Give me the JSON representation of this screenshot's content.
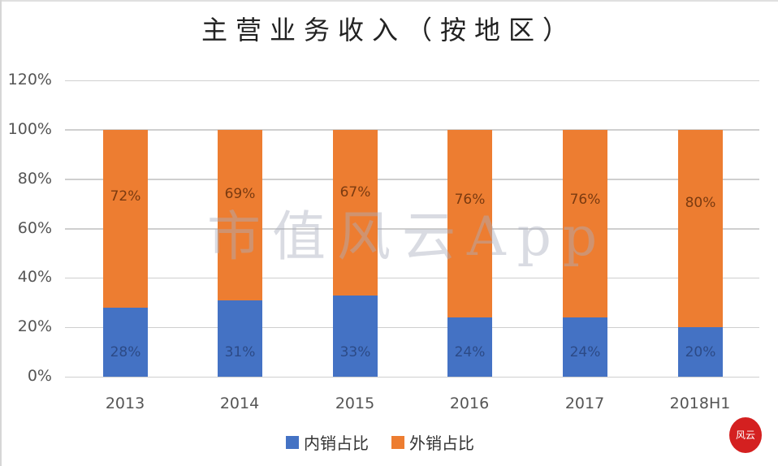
{
  "chart_data": {
    "type": "bar",
    "stacked": true,
    "title": "主营业务收入（按地区）",
    "xlabel": "",
    "ylabel": "",
    "categories": [
      "2013",
      "2014",
      "2015",
      "2016",
      "2017",
      "2018H1"
    ],
    "series": [
      {
        "name": "内销占比",
        "color": "#4472c4",
        "values": [
          28,
          31,
          33,
          24,
          24,
          20
        ],
        "labels": [
          "28%",
          "31%",
          "33%",
          "24%",
          "24%",
          "20%"
        ]
      },
      {
        "name": "外销占比",
        "color": "#ed7d31",
        "values": [
          72,
          69,
          67,
          76,
          76,
          80
        ],
        "labels": [
          "72%",
          "69%",
          "67%",
          "76%",
          "76%",
          "80%"
        ]
      }
    ],
    "yticks": [
      "0%",
      "20%",
      "40%",
      "60%",
      "80%",
      "100%",
      "120%"
    ],
    "ylim": [
      0,
      120
    ],
    "grid": true,
    "legend_position": "bottom"
  },
  "watermark": "市值风云App",
  "seal_text": "风云"
}
